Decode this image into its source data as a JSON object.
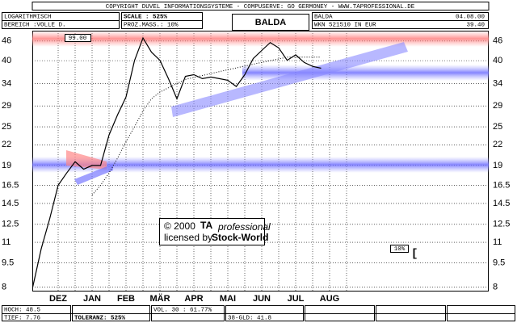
{
  "chart_data": {
    "type": "line",
    "log_scale": true,
    "grid": true,
    "categories": [
      null,
      null,
      null,
      "DEZ",
      null,
      null,
      null,
      "JAN",
      null,
      null,
      null,
      "FEB",
      null,
      null,
      null,
      "MÄR",
      null,
      null,
      null,
      "APR",
      null,
      null,
      null,
      "MAI",
      null,
      null,
      null,
      "JUN",
      null,
      null,
      null,
      "JUL",
      null,
      null,
      null,
      "AUG"
    ],
    "series": [
      {
        "color": "#000000",
        "style": "solid",
        "values": [
          8,
          10.5,
          13,
          16.5,
          18,
          19.5,
          18.5,
          19,
          19,
          23.6,
          27.2,
          30.9,
          40,
          47,
          42.5,
          40.1,
          35.2,
          30.5,
          35.8,
          36.2,
          35.2,
          35.6,
          35.2,
          34.8,
          33.3,
          36.2,
          40.6,
          43,
          45.5,
          43.8,
          40.1,
          41.7,
          39.5,
          38.4,
          37.9,
          null
        ]
      },
      {
        "color": "#000000",
        "style": "dotted",
        "values": [
          null,
          null,
          null,
          null,
          null,
          null,
          null,
          15.4,
          16.5,
          18,
          20,
          22.5,
          25,
          28,
          30.5,
          32,
          33,
          34,
          35,
          35.5,
          36,
          36.5,
          37,
          37.5,
          38,
          38.5,
          39,
          39.5,
          40,
          40.5,
          41,
          41,
          41,
          41,
          41,
          null
        ]
      }
    ],
    "ylim": [
      7.8,
      49.5
    ],
    "yticks": [
      46,
      40,
      34,
      29,
      25,
      22,
      19,
      16.5,
      14.5,
      12.5,
      11,
      9.5,
      8
    ]
  },
  "header": {
    "copyright": "COPYRIGHT  DUVEL INFORMATIONSSYSTEME - COMPUSERVE: GO GERMONEY - WWW.TAPROFESSIONAL.DE",
    "scale_type": "LOGARITHMISCH",
    "range": "BEREICH :VOLLE D.",
    "scale": "SCALE : 525%",
    "percent": "PROZ.MASS.: 10%",
    "title": "BALDA",
    "name": "BALDA",
    "wkn": "WKN 521510   IN EUR",
    "date": "04.08.00",
    "price": "39.40",
    "marker": "99.00"
  },
  "watermark": {
    "year": "© 2000",
    "brand": "TA",
    "brand2": "professional",
    "license": "licensed by",
    "licensor": "Stock-World"
  },
  "scale_box": "10%",
  "cursor": "[",
  "footer": {
    "high": "HOCH: 48.5",
    "low": "TIEF: 7.76",
    "tolerance": "TOLERANZ: 525%",
    "volatility": "VOL. 30 : 61.77%",
    "gld": "38-GLD: 41.8"
  }
}
